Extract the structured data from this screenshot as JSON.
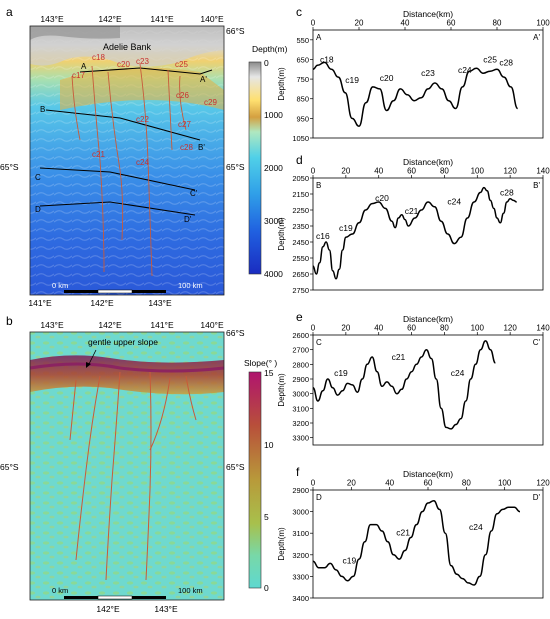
{
  "panels": {
    "a": {
      "letter": "a",
      "top_ticks": [
        "143°E",
        "142°E",
        "141°E",
        "140°E"
      ],
      "bottom_ticks": [
        "141°E",
        "142°E",
        "143°E"
      ],
      "lat_top_right": "66°S",
      "lat_left": "65°S",
      "lat_right": "65°S",
      "place_name": "Adelie Bank",
      "profile_labels": [
        "A",
        "A'",
        "B",
        "B'",
        "C",
        "C'",
        "D",
        "D'"
      ],
      "canyon_labels": [
        "c18",
        "c20",
        "c23",
        "c25",
        "c17",
        "c26",
        "c29",
        "c22",
        "c27",
        "c28",
        "c21",
        "c24"
      ],
      "scale_left": "0 km",
      "scale_right": "100 km",
      "colorbar_title": "Depth(m)",
      "colorbar_ticks": [
        "0",
        "1000",
        "2000",
        "3000",
        "4000"
      ]
    },
    "b": {
      "letter": "b",
      "top_ticks": [
        "143°E",
        "142°E",
        "141°E",
        "140°E"
      ],
      "bottom_ticks": [
        "142°E",
        "143°E"
      ],
      "lat_top_right": "66°S",
      "lat_left": "65°S",
      "lat_right": "65°S",
      "annotation": "gentle upper slope",
      "scale_left": "0 km",
      "scale_right": "100 km",
      "colorbar_title": "Slope(° )",
      "colorbar_ticks": [
        "15",
        "10",
        "5",
        "0"
      ]
    }
  },
  "colors": {
    "depth_gradient": [
      "#c8c8c8",
      "#e8c060",
      "#9fe0d8",
      "#40c0e0",
      "#2070e0",
      "#1a2fc0"
    ],
    "slope_gradient": [
      "#b01a78",
      "#c05030",
      "#c09a3a",
      "#a8c04a",
      "#70d8b8",
      "#5ed8d0"
    ],
    "map_b_background": "#6fd9cf",
    "canyon_line": "#c85a3a"
  },
  "chart_data": [
    {
      "type": "line",
      "panel": "c",
      "title": "Distance(km)",
      "xlabel": "Distance(km)",
      "ylabel": "Depth(m)",
      "xlim": [
        0,
        100
      ],
      "ylim": [
        500,
        1050
      ],
      "y_inverted": true,
      "xticks": [
        0,
        20,
        40,
        60,
        80,
        100
      ],
      "yticks": [
        550,
        650,
        750,
        850,
        950,
        1050
      ],
      "corner_labels": [
        "A",
        "A'"
      ],
      "x": [
        0,
        2,
        5,
        8,
        11,
        14,
        17,
        20,
        23,
        26,
        29,
        32,
        35,
        38,
        41,
        44,
        47,
        50,
        53,
        56,
        59,
        62,
        65,
        68,
        71,
        74,
        77,
        80,
        83,
        86,
        89
      ],
      "values": [
        700,
        680,
        665,
        700,
        740,
        820,
        950,
        990,
        870,
        790,
        800,
        910,
        860,
        800,
        830,
        860,
        845,
        800,
        770,
        800,
        860,
        900,
        790,
        710,
        695,
        720,
        710,
        700,
        740,
        790,
        900
      ],
      "annotations": [
        {
          "text": "c18",
          "x": 6,
          "y": 665
        },
        {
          "text": "c19",
          "x": 17,
          "y": 770
        },
        {
          "text": "c20",
          "x": 32,
          "y": 760
        },
        {
          "text": "c23",
          "x": 50,
          "y": 735
        },
        {
          "text": "c24",
          "x": 66,
          "y": 720
        },
        {
          "text": "c25",
          "x": 77,
          "y": 665
        },
        {
          "text": "c28",
          "x": 84,
          "y": 680
        }
      ]
    },
    {
      "type": "line",
      "panel": "d",
      "title": "Distance(km)",
      "xlabel": "Distance(km)",
      "ylabel": "Depth(m)",
      "xlim": [
        0,
        140
      ],
      "ylim": [
        2050,
        2750
      ],
      "y_inverted": true,
      "xticks": [
        0,
        20,
        40,
        60,
        80,
        100,
        120,
        140
      ],
      "yticks": [
        2050,
        2150,
        2250,
        2350,
        2450,
        2550,
        2650,
        2750
      ],
      "corner_labels": [
        "B",
        "B'"
      ],
      "x": [
        0,
        2,
        4,
        6,
        8,
        10,
        12,
        14,
        16,
        18,
        20,
        24,
        28,
        32,
        36,
        40,
        44,
        48,
        50,
        52,
        54,
        56,
        58,
        62,
        66,
        70,
        74,
        78,
        82,
        86,
        90,
        94,
        98,
        102,
        104,
        106,
        108,
        110,
        112,
        114,
        116,
        118,
        120,
        122,
        124
      ],
      "values": [
        2600,
        2650,
        2580,
        2480,
        2450,
        2500,
        2630,
        2680,
        2620,
        2500,
        2420,
        2400,
        2330,
        2250,
        2210,
        2200,
        2240,
        2320,
        2360,
        2300,
        2280,
        2310,
        2350,
        2300,
        2250,
        2200,
        2230,
        2320,
        2400,
        2460,
        2420,
        2300,
        2200,
        2140,
        2110,
        2130,
        2190,
        2240,
        2300,
        2330,
        2270,
        2200,
        2180,
        2190,
        2200
      ],
      "annotations": [
        {
          "text": "c16",
          "x": 6,
          "y": 2430
        },
        {
          "text": "c19",
          "x": 20,
          "y": 2380
        },
        {
          "text": "c20",
          "x": 42,
          "y": 2195
        },
        {
          "text": "c21",
          "x": 60,
          "y": 2275
        },
        {
          "text": "c24",
          "x": 86,
          "y": 2215
        },
        {
          "text": "c28",
          "x": 118,
          "y": 2160
        }
      ]
    },
    {
      "type": "line",
      "panel": "e",
      "title": "Distance(km)",
      "xlabel": "Distance(km)",
      "ylabel": "Depth(m)",
      "xlim": [
        0,
        140
      ],
      "ylim": [
        2600,
        3350
      ],
      "y_inverted": true,
      "xticks": [
        0,
        20,
        40,
        60,
        80,
        100,
        120,
        140
      ],
      "yticks": [
        2600,
        2700,
        2800,
        2900,
        3000,
        3100,
        3200,
        3300
      ],
      "corner_labels": [
        "C",
        "C'"
      ],
      "x": [
        0,
        3,
        6,
        9,
        12,
        15,
        18,
        21,
        24,
        27,
        30,
        33,
        36,
        39,
        42,
        45,
        48,
        51,
        54,
        57,
        60,
        63,
        66,
        69,
        72,
        75,
        78,
        81,
        84,
        87,
        90,
        93,
        96,
        99,
        102,
        105,
        108,
        111
      ],
      "values": [
        2960,
        3050,
        2980,
        2900,
        2960,
        3010,
        2980,
        2930,
        2940,
        2990,
        2900,
        2800,
        2750,
        2850,
        2950,
        2920,
        2950,
        3000,
        2970,
        2900,
        2850,
        2800,
        2750,
        2700,
        2760,
        2900,
        3100,
        3230,
        3240,
        3210,
        3170,
        3050,
        2900,
        2800,
        2700,
        2640,
        2700,
        2790
      ],
      "annotations": [
        {
          "text": "c19",
          "x": 17,
          "y": 2880
        },
        {
          "text": "c21",
          "x": 52,
          "y": 2770
        },
        {
          "text": "c24",
          "x": 88,
          "y": 2880
        }
      ]
    },
    {
      "type": "line",
      "panel": "f",
      "title": "Distance(km)",
      "xlabel": "Distance(km)",
      "ylabel": "Depth(m)",
      "xlim": [
        0,
        120
      ],
      "ylim": [
        2900,
        3400
      ],
      "y_inverted": true,
      "xticks": [
        0,
        20,
        40,
        60,
        80,
        100,
        120
      ],
      "yticks": [
        2900,
        3000,
        3100,
        3200,
        3300,
        3400
      ],
      "corner_labels": [
        "D",
        "D'"
      ],
      "x": [
        0,
        3,
        6,
        9,
        12,
        15,
        18,
        21,
        24,
        27,
        30,
        33,
        36,
        39,
        42,
        45,
        48,
        51,
        54,
        57,
        60,
        63,
        66,
        69,
        72,
        75,
        78,
        81,
        84,
        87,
        90,
        93,
        96,
        99,
        102,
        105,
        108
      ],
      "values": [
        3230,
        3260,
        3260,
        3240,
        3270,
        3300,
        3320,
        3300,
        3220,
        3140,
        3060,
        3060,
        3090,
        3140,
        3200,
        3220,
        3180,
        3120,
        3060,
        3000,
        2960,
        2950,
        2990,
        3100,
        3250,
        3290,
        3310,
        3330,
        3340,
        3300,
        3200,
        3090,
        3010,
        2990,
        2980,
        2980,
        3000
      ],
      "annotations": [
        {
          "text": "c19",
          "x": 19,
          "y": 3240
        },
        {
          "text": "c21",
          "x": 47,
          "y": 3110
        },
        {
          "text": "c24",
          "x": 85,
          "y": 3085
        }
      ]
    }
  ]
}
